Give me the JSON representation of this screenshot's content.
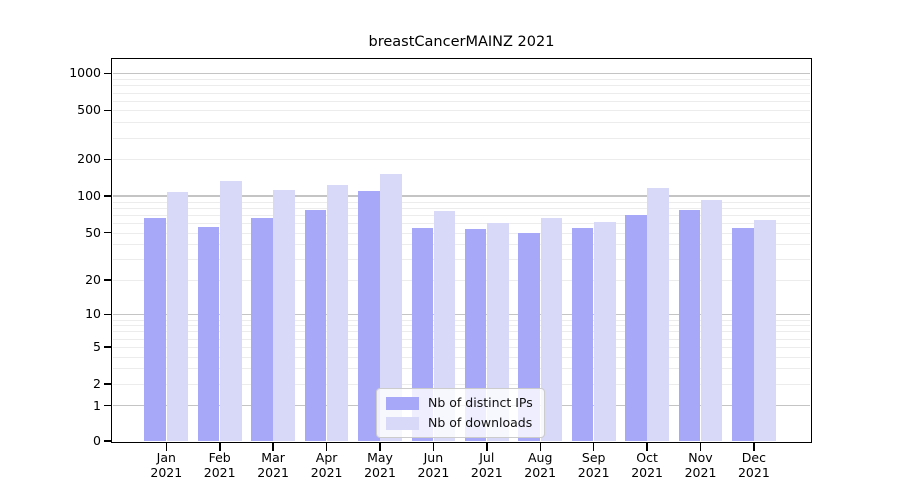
{
  "title": "breastCancerMAINZ 2021",
  "chart_data": {
    "type": "bar",
    "title": "breastCancerMAINZ 2021",
    "scale": "log1p",
    "grid": "horizontal",
    "legend_position": "inside-bottom-center",
    "categories": [
      "Jan 2021",
      "Feb 2021",
      "Mar 2021",
      "Apr 2021",
      "May 2021",
      "Jun 2021",
      "Jul 2021",
      "Aug 2021",
      "Sep 2021",
      "Oct 2021",
      "Nov 2021",
      "Dec 2021"
    ],
    "series": [
      {
        "name": "Nb of distinct IPs",
        "color": "#a8a8f8",
        "values": [
          66,
          56,
          66,
          77,
          110,
          55,
          53,
          50,
          54,
          70,
          77,
          55
        ]
      },
      {
        "name": "Nb of downloads",
        "color": "#d8d8f8",
        "values": [
          108,
          133,
          112,
          123,
          152,
          76,
          60,
          66,
          61,
          116,
          93,
          64
        ]
      }
    ],
    "y_ticks": [
      0,
      1,
      2,
      5,
      10,
      20,
      50,
      100,
      200,
      500,
      1000
    ],
    "ylim": [
      0,
      1220
    ],
    "xlabel": "",
    "ylabel": ""
  },
  "colors": {
    "distinct_ips_bar": "#a8a8f8",
    "downloads_bar": "#d8d8f8",
    "major_gridline": "#c4c4c4",
    "minor_gridline": "#ececec",
    "axis": "#000000",
    "legend_border": "#cccccc"
  }
}
